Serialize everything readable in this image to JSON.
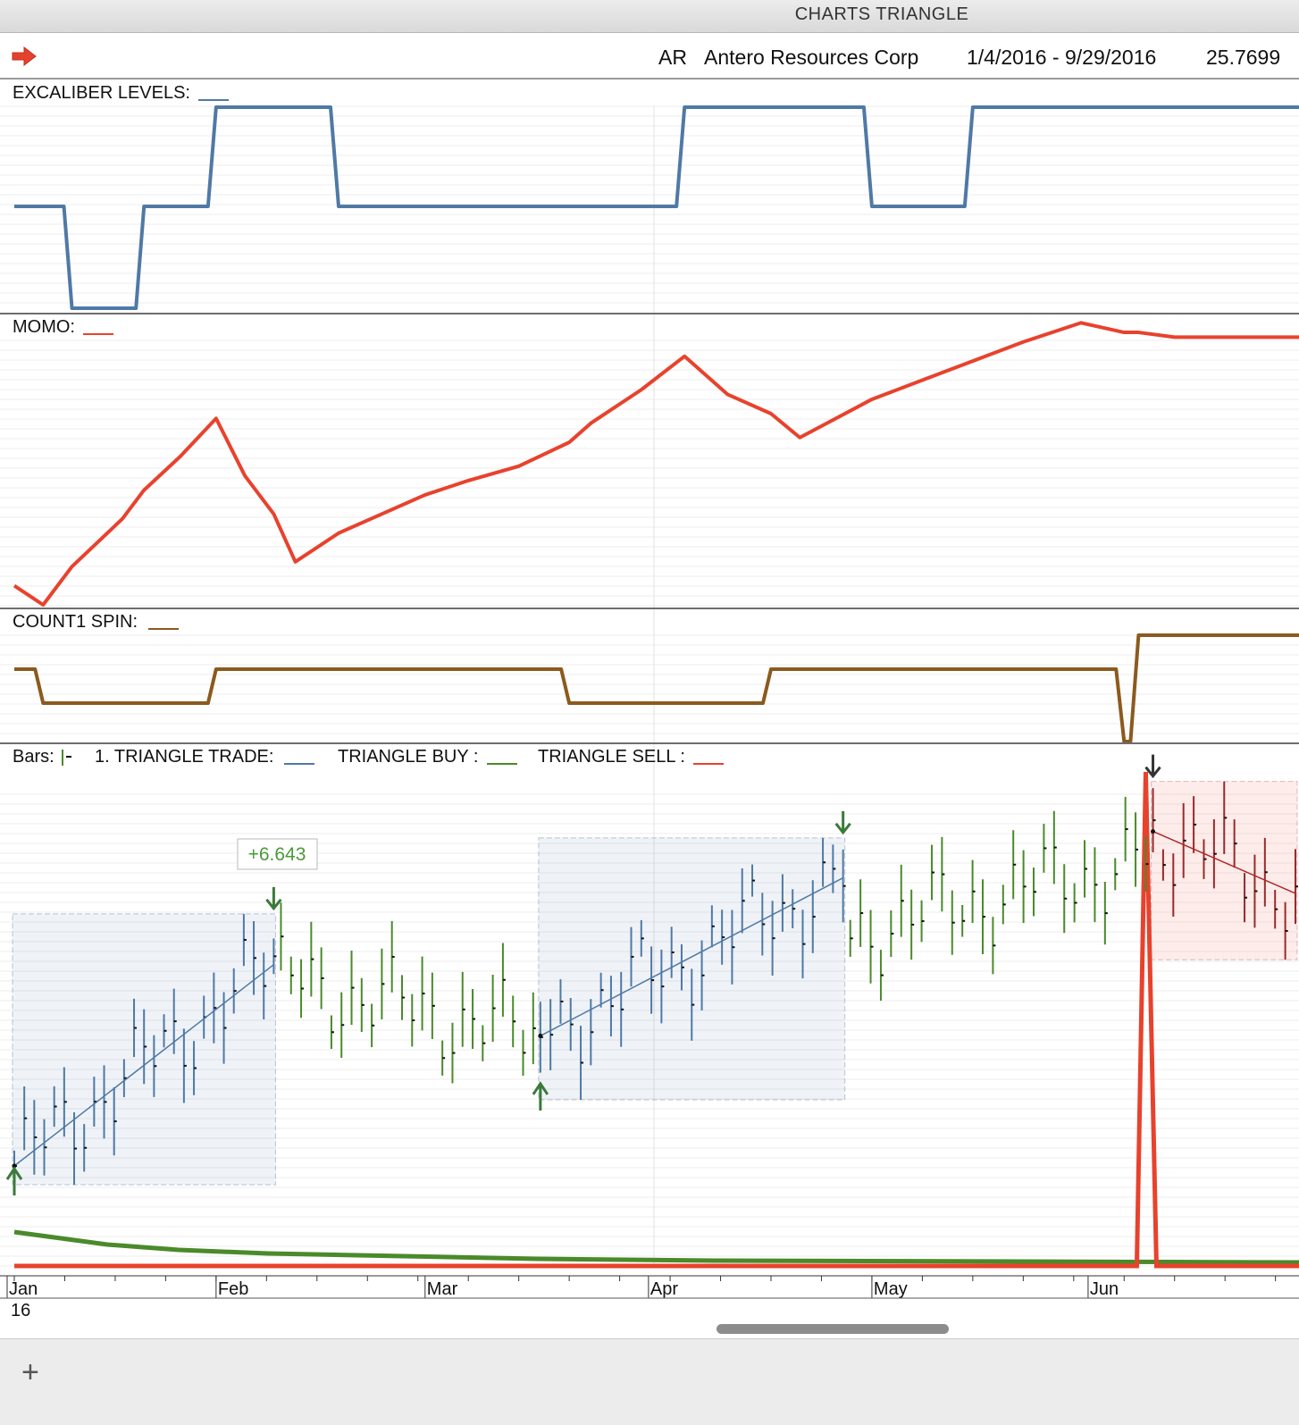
{
  "window": {
    "title": "CHARTS TRIANGLE"
  },
  "header": {
    "symbol": "AR",
    "company": "Antero Resources Corp",
    "date_range": "1/4/2016 - 9/29/2016",
    "price": "25.7699",
    "arrow_icon": "right-arrow-icon",
    "arrow_color": "#e5422d"
  },
  "panes": {
    "excaliber": {
      "label": "EXCALIBER LEVELS:",
      "color": "#4f79a6"
    },
    "momo": {
      "label": "MOMO:",
      "color": "#e8422d"
    },
    "spin": {
      "label": "COUNT1 SPIN:",
      "color": "#8b5a1e"
    },
    "price": {
      "bars_label": "Bars:",
      "trade_label": "1. TRIANGLE TRADE:",
      "buy_label": "TRIANGLE BUY :",
      "sell_label": "TRIANGLE SELL :",
      "trade_color": "#4f79a6",
      "buy_color": "#4a8a2a",
      "sell_color": "#e8422d",
      "profit_label": "+6.643"
    }
  },
  "axis": {
    "months": [
      "Jan",
      "Feb",
      "Mar",
      "Apr",
      "May",
      "Jun"
    ],
    "year": "16"
  },
  "chart_data": {
    "type": "line",
    "x": [
      "2016-01-04",
      "2016-01-08",
      "2016-01-12",
      "2016-01-19",
      "2016-01-22",
      "2016-01-27",
      "2016-02-01",
      "2016-02-05",
      "2016-02-09",
      "2016-02-12",
      "2016-02-18",
      "2016-02-24",
      "2016-03-01",
      "2016-03-07",
      "2016-03-14",
      "2016-03-21",
      "2016-03-24",
      "2016-03-31",
      "2016-04-06",
      "2016-04-12",
      "2016-04-18",
      "2016-04-22",
      "2016-04-27",
      "2016-05-02",
      "2016-05-09",
      "2016-05-16",
      "2016-05-23",
      "2016-05-31",
      "2016-06-06",
      "2016-06-08",
      "2016-06-13"
    ],
    "series": [
      {
        "pane": "excaliber",
        "values": [
          2,
          2,
          1,
          1,
          2,
          2,
          3,
          3,
          3,
          3,
          2,
          2,
          2,
          2,
          2,
          2,
          2,
          2,
          3,
          3,
          3,
          3,
          3,
          2,
          2,
          3,
          3,
          3,
          3,
          3,
          3
        ]
      },
      {
        "pane": "momo",
        "values": [
          3,
          -1,
          7,
          17,
          23,
          30,
          38,
          26,
          18,
          8,
          14,
          18,
          22,
          25,
          28,
          33,
          37,
          44,
          51,
          43,
          39,
          34,
          38,
          42,
          46,
          50,
          54,
          58,
          56,
          56,
          55
        ]
      },
      {
        "pane": "spin",
        "values": [
          1,
          0,
          0,
          0,
          0,
          0,
          1,
          1,
          1,
          1,
          1,
          1,
          1,
          1,
          1,
          0,
          0,
          0,
          0,
          0,
          1,
          1,
          1,
          1,
          1,
          1,
          1,
          1,
          -1,
          2,
          2
        ]
      }
    ],
    "price_bars": {
      "phases": [
        {
          "trade": "long",
          "from": "2016-01-04",
          "to": "2016-02-09",
          "start": 14.5,
          "end": 21.0,
          "result": "+6.643"
        },
        {
          "trade": "none",
          "from": "2016-02-10",
          "to": "2016-03-16",
          "start": 20.5,
          "end": 18.7
        },
        {
          "trade": "long",
          "from": "2016-03-17",
          "to": "2016-04-28",
          "start": 18.7,
          "end": 23.8
        },
        {
          "trade": "none",
          "from": "2016-04-29",
          "to": "2016-06-09",
          "start": 22.0,
          "end": 24.4
        },
        {
          "trade": "short",
          "from": "2016-06-10",
          "to": "2016-06-30",
          "start": 25.3,
          "end": 23.3
        }
      ],
      "ylim": [
        11.5,
        26.5
      ]
    }
  }
}
